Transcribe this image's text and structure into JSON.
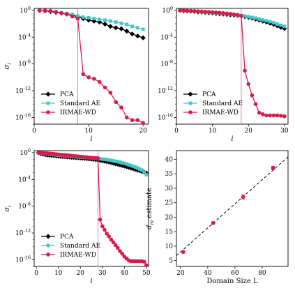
{
  "chart_data": [
    {
      "type": "line",
      "yscale": "log",
      "xlabel": "i",
      "ylabel": "σi",
      "xlim": [
        0,
        21
      ],
      "ylim": [
        1e-17,
        2
      ],
      "xticks": [
        0,
        10,
        20
      ],
      "yticks": [
        1,
        0.0001,
        1e-08,
        1e-12,
        1e-16
      ],
      "ytick_labels": [
        "10^0",
        "10^-4",
        "10^-8",
        "10^-12",
        "10^-16"
      ],
      "vline": 8,
      "legend": "lower-left",
      "series": [
        {
          "name": "PCA",
          "color": "#000000",
          "marker": "diamond",
          "x": [
            1,
            2,
            3,
            4,
            5,
            6,
            7,
            8,
            9,
            10,
            11,
            12,
            13,
            14,
            15,
            16,
            17,
            18,
            19,
            20
          ],
          "y": [
            1.0,
            0.85,
            0.65,
            0.5,
            0.38,
            0.28,
            0.2,
            0.12,
            0.06,
            0.035,
            0.025,
            0.018,
            0.009,
            0.004,
            0.0025,
            0.0018,
            0.0008,
            0.0003,
            0.00015,
            8e-05
          ]
        },
        {
          "name": "Standard AE",
          "color": "#43c6c6",
          "marker": "square",
          "x": [
            1,
            2,
            3,
            4,
            5,
            6,
            7,
            8,
            9,
            10,
            11,
            12,
            13,
            14,
            15,
            16,
            17,
            18,
            19,
            20
          ],
          "y": [
            1.0,
            0.9,
            0.75,
            0.6,
            0.45,
            0.33,
            0.25,
            0.15,
            0.1,
            0.08,
            0.06,
            0.045,
            0.035,
            0.025,
            0.018,
            0.012,
            0.008,
            0.004,
            0.0025,
            0.0015
          ]
        },
        {
          "name": "IRMAE-WD",
          "color": "#d81b4a",
          "marker": "circle",
          "x": [
            1,
            2,
            3,
            4,
            5,
            6,
            7,
            8,
            9,
            10,
            11,
            12,
            13,
            14,
            15,
            16,
            17,
            18,
            19,
            20
          ],
          "y": [
            1.0,
            0.95,
            0.85,
            0.6,
            0.4,
            0.3,
            0.12,
            0.06,
            3e-10,
            1e-10,
            6e-11,
            2e-11,
            3e-12,
            5e-13,
            2e-14,
            3e-15,
            1e-16,
            4e-17,
            4e-17,
            1.5e-17
          ]
        }
      ]
    },
    {
      "type": "line",
      "yscale": "log",
      "xlabel": "i",
      "ylabel": "",
      "xlim": [
        0,
        31
      ],
      "ylim": [
        1e-17,
        2
      ],
      "xticks": [
        0,
        10,
        20,
        30
      ],
      "yticks": [
        1,
        0.0001,
        1e-08,
        1e-12,
        1e-16
      ],
      "ytick_labels": [
        "10^0",
        "10^-4",
        "10^-8",
        "10^-12",
        "10^-16"
      ],
      "vline": 18,
      "legend": "lower-left",
      "series": [
        {
          "name": "PCA",
          "color": "#000000",
          "marker": "diamond",
          "x": [
            1,
            2,
            3,
            4,
            5,
            6,
            7,
            8,
            9,
            10,
            11,
            12,
            13,
            14,
            15,
            16,
            17,
            18,
            19,
            20,
            21,
            22,
            23,
            24,
            25,
            26,
            27,
            28,
            29,
            30
          ],
          "y": [
            1.0,
            0.85,
            0.8,
            0.75,
            0.7,
            0.6,
            0.55,
            0.5,
            0.45,
            0.4,
            0.35,
            0.3,
            0.28,
            0.25,
            0.22,
            0.2,
            0.18,
            0.15,
            0.12,
            0.09,
            0.07,
            0.05,
            0.035,
            0.025,
            0.018,
            0.012,
            0.008,
            0.005,
            0.003,
            0.002
          ]
        },
        {
          "name": "Standard AE",
          "color": "#43c6c6",
          "marker": "square",
          "x": [
            1,
            2,
            3,
            4,
            5,
            6,
            7,
            8,
            9,
            10,
            11,
            12,
            13,
            14,
            15,
            16,
            17,
            18,
            19,
            20,
            21,
            22,
            23,
            24,
            25,
            26,
            27,
            28,
            29,
            30
          ],
          "y": [
            1.0,
            0.9,
            0.85,
            0.8,
            0.75,
            0.68,
            0.6,
            0.55,
            0.5,
            0.45,
            0.4,
            0.35,
            0.32,
            0.3,
            0.27,
            0.24,
            0.2,
            0.17,
            0.14,
            0.11,
            0.09,
            0.07,
            0.05,
            0.038,
            0.028,
            0.02,
            0.014,
            0.009,
            0.006,
            0.004
          ]
        },
        {
          "name": "IRMAE-WD",
          "color": "#d81b4a",
          "marker": "circle",
          "x": [
            1,
            2,
            3,
            4,
            5,
            6,
            7,
            8,
            9,
            10,
            11,
            12,
            13,
            14,
            15,
            16,
            17,
            18,
            19,
            20,
            21,
            22,
            23,
            24,
            25,
            26,
            27,
            28,
            29,
            30
          ],
          "y": [
            1.0,
            0.95,
            0.9,
            0.85,
            0.8,
            0.75,
            0.7,
            0.65,
            0.6,
            0.55,
            0.5,
            0.45,
            0.4,
            0.35,
            0.3,
            0.25,
            0.2,
            0.15,
            1e-09,
            1e-11,
            2e-13,
            1e-14,
            5e-16,
            3e-16,
            2e-16,
            2e-16,
            2e-16,
            2e-16,
            1.8e-16,
            1.5e-16
          ]
        }
      ]
    },
    {
      "type": "line",
      "yscale": "log",
      "xlabel": "i",
      "ylabel": "σi",
      "xlim": [
        -1,
        51
      ],
      "ylim": [
        1e-17,
        2
      ],
      "xticks": [
        0,
        10,
        20,
        30,
        40,
        50
      ],
      "yticks": [
        1,
        0.0001,
        1e-08,
        1e-12,
        1e-16
      ],
      "ytick_labels": [
        "10^0",
        "10^-4",
        "10^-8",
        "10^-12",
        "10^-16"
      ],
      "vline": 28,
      "legend": "lower-left",
      "series": [
        {
          "name": "PCA",
          "color": "#000000",
          "marker": "diamond",
          "x": [
            1,
            2,
            3,
            4,
            5,
            6,
            7,
            8,
            9,
            10,
            11,
            12,
            13,
            14,
            15,
            16,
            17,
            18,
            19,
            20,
            21,
            22,
            23,
            24,
            25,
            26,
            27,
            28,
            29,
            30,
            31,
            32,
            33,
            34,
            35,
            36,
            37,
            38,
            39,
            40,
            41,
            42,
            43,
            44,
            45,
            46,
            47,
            48,
            49,
            50
          ],
          "y": [
            1.0,
            0.7,
            0.6,
            0.5,
            0.45,
            0.4,
            0.38,
            0.36,
            0.33,
            0.3,
            0.28,
            0.26,
            0.25,
            0.23,
            0.22,
            0.2,
            0.19,
            0.18,
            0.17,
            0.16,
            0.15,
            0.14,
            0.13,
            0.12,
            0.11,
            0.1,
            0.09,
            0.08,
            0.07,
            0.06,
            0.052,
            0.045,
            0.04,
            0.033,
            0.027,
            0.022,
            0.018,
            0.015,
            0.012,
            0.01,
            0.008,
            0.0065,
            0.005,
            0.004,
            0.0032,
            0.0025,
            0.002,
            0.0015,
            0.0012,
            0.0009
          ]
        },
        {
          "name": "Standard AE",
          "color": "#43c6c6",
          "marker": "square",
          "x": [
            1,
            2,
            3,
            4,
            5,
            6,
            7,
            8,
            9,
            10,
            11,
            12,
            13,
            14,
            15,
            16,
            17,
            18,
            19,
            20,
            21,
            22,
            23,
            24,
            25,
            26,
            27,
            28,
            29,
            30,
            31,
            32,
            33,
            34,
            35,
            36,
            37,
            38,
            39,
            40,
            41,
            42,
            43,
            44,
            45,
            46,
            47,
            48,
            49,
            50
          ],
          "y": [
            1.0,
            0.9,
            0.8,
            0.7,
            0.65,
            0.6,
            0.55,
            0.5,
            0.46,
            0.42,
            0.4,
            0.37,
            0.34,
            0.31,
            0.29,
            0.27,
            0.25,
            0.24,
            0.22,
            0.21,
            0.2,
            0.19,
            0.18,
            0.17,
            0.16,
            0.15,
            0.14,
            0.13,
            0.12,
            0.11,
            0.1,
            0.09,
            0.08,
            0.07,
            0.06,
            0.052,
            0.045,
            0.038,
            0.03,
            0.025,
            0.02,
            0.015,
            0.012,
            0.009,
            0.007,
            0.005,
            0.0035,
            0.0025,
            0.0012,
            0.0005
          ]
        },
        {
          "name": "IRMAE-WD",
          "color": "#d81b4a",
          "marker": "circle",
          "x": [
            1,
            2,
            3,
            4,
            5,
            6,
            7,
            8,
            9,
            10,
            11,
            12,
            13,
            14,
            15,
            16,
            17,
            18,
            19,
            20,
            21,
            22,
            23,
            24,
            25,
            26,
            27,
            28,
            29,
            30,
            31,
            32,
            33,
            34,
            35,
            36,
            37,
            38,
            39,
            40,
            41,
            42,
            43,
            44,
            45,
            46,
            47,
            48,
            49,
            50
          ],
          "y": [
            1.0,
            0.95,
            0.9,
            0.85,
            0.8,
            0.75,
            0.7,
            0.65,
            0.6,
            0.55,
            0.5,
            0.47,
            0.44,
            0.41,
            0.38,
            0.35,
            0.32,
            0.3,
            0.28,
            0.26,
            0.24,
            0.22,
            0.2,
            0.19,
            0.18,
            0.17,
            0.16,
            0.15,
            1e-10,
            1e-11,
            3e-12,
            8e-13,
            3e-13,
            1e-13,
            4e-14,
            1.5e-14,
            6e-15,
            2e-15,
            8e-16,
            3e-16,
            1.5e-16,
            8e-17,
            6e-17,
            6e-17,
            6e-17,
            6e-17,
            6e-17,
            6e-17,
            5e-17,
            1.5e-17
          ]
        }
      ]
    },
    {
      "type": "scatter",
      "xlabel": "Domain Size L",
      "ylabel": "d_m estimate",
      "xlim": [
        17,
        99
      ],
      "ylim": [
        3,
        43
      ],
      "xticks": [
        20,
        40,
        60,
        80
      ],
      "yticks": [
        5,
        10,
        15,
        20,
        25,
        30,
        35,
        40
      ],
      "legend": "none",
      "reference_line": {
        "style": "dashed",
        "color": "#000000",
        "slope": 0.4154,
        "intercept": -0.3
      },
      "series": [
        {
          "color": "#d81b4a",
          "marker": "circle",
          "x": [
            22,
            44,
            66,
            88
          ],
          "y": [
            8,
            18,
            27,
            37
          ],
          "err": [
            0.4,
            0.4,
            0.7,
            0.6
          ]
        }
      ]
    }
  ]
}
